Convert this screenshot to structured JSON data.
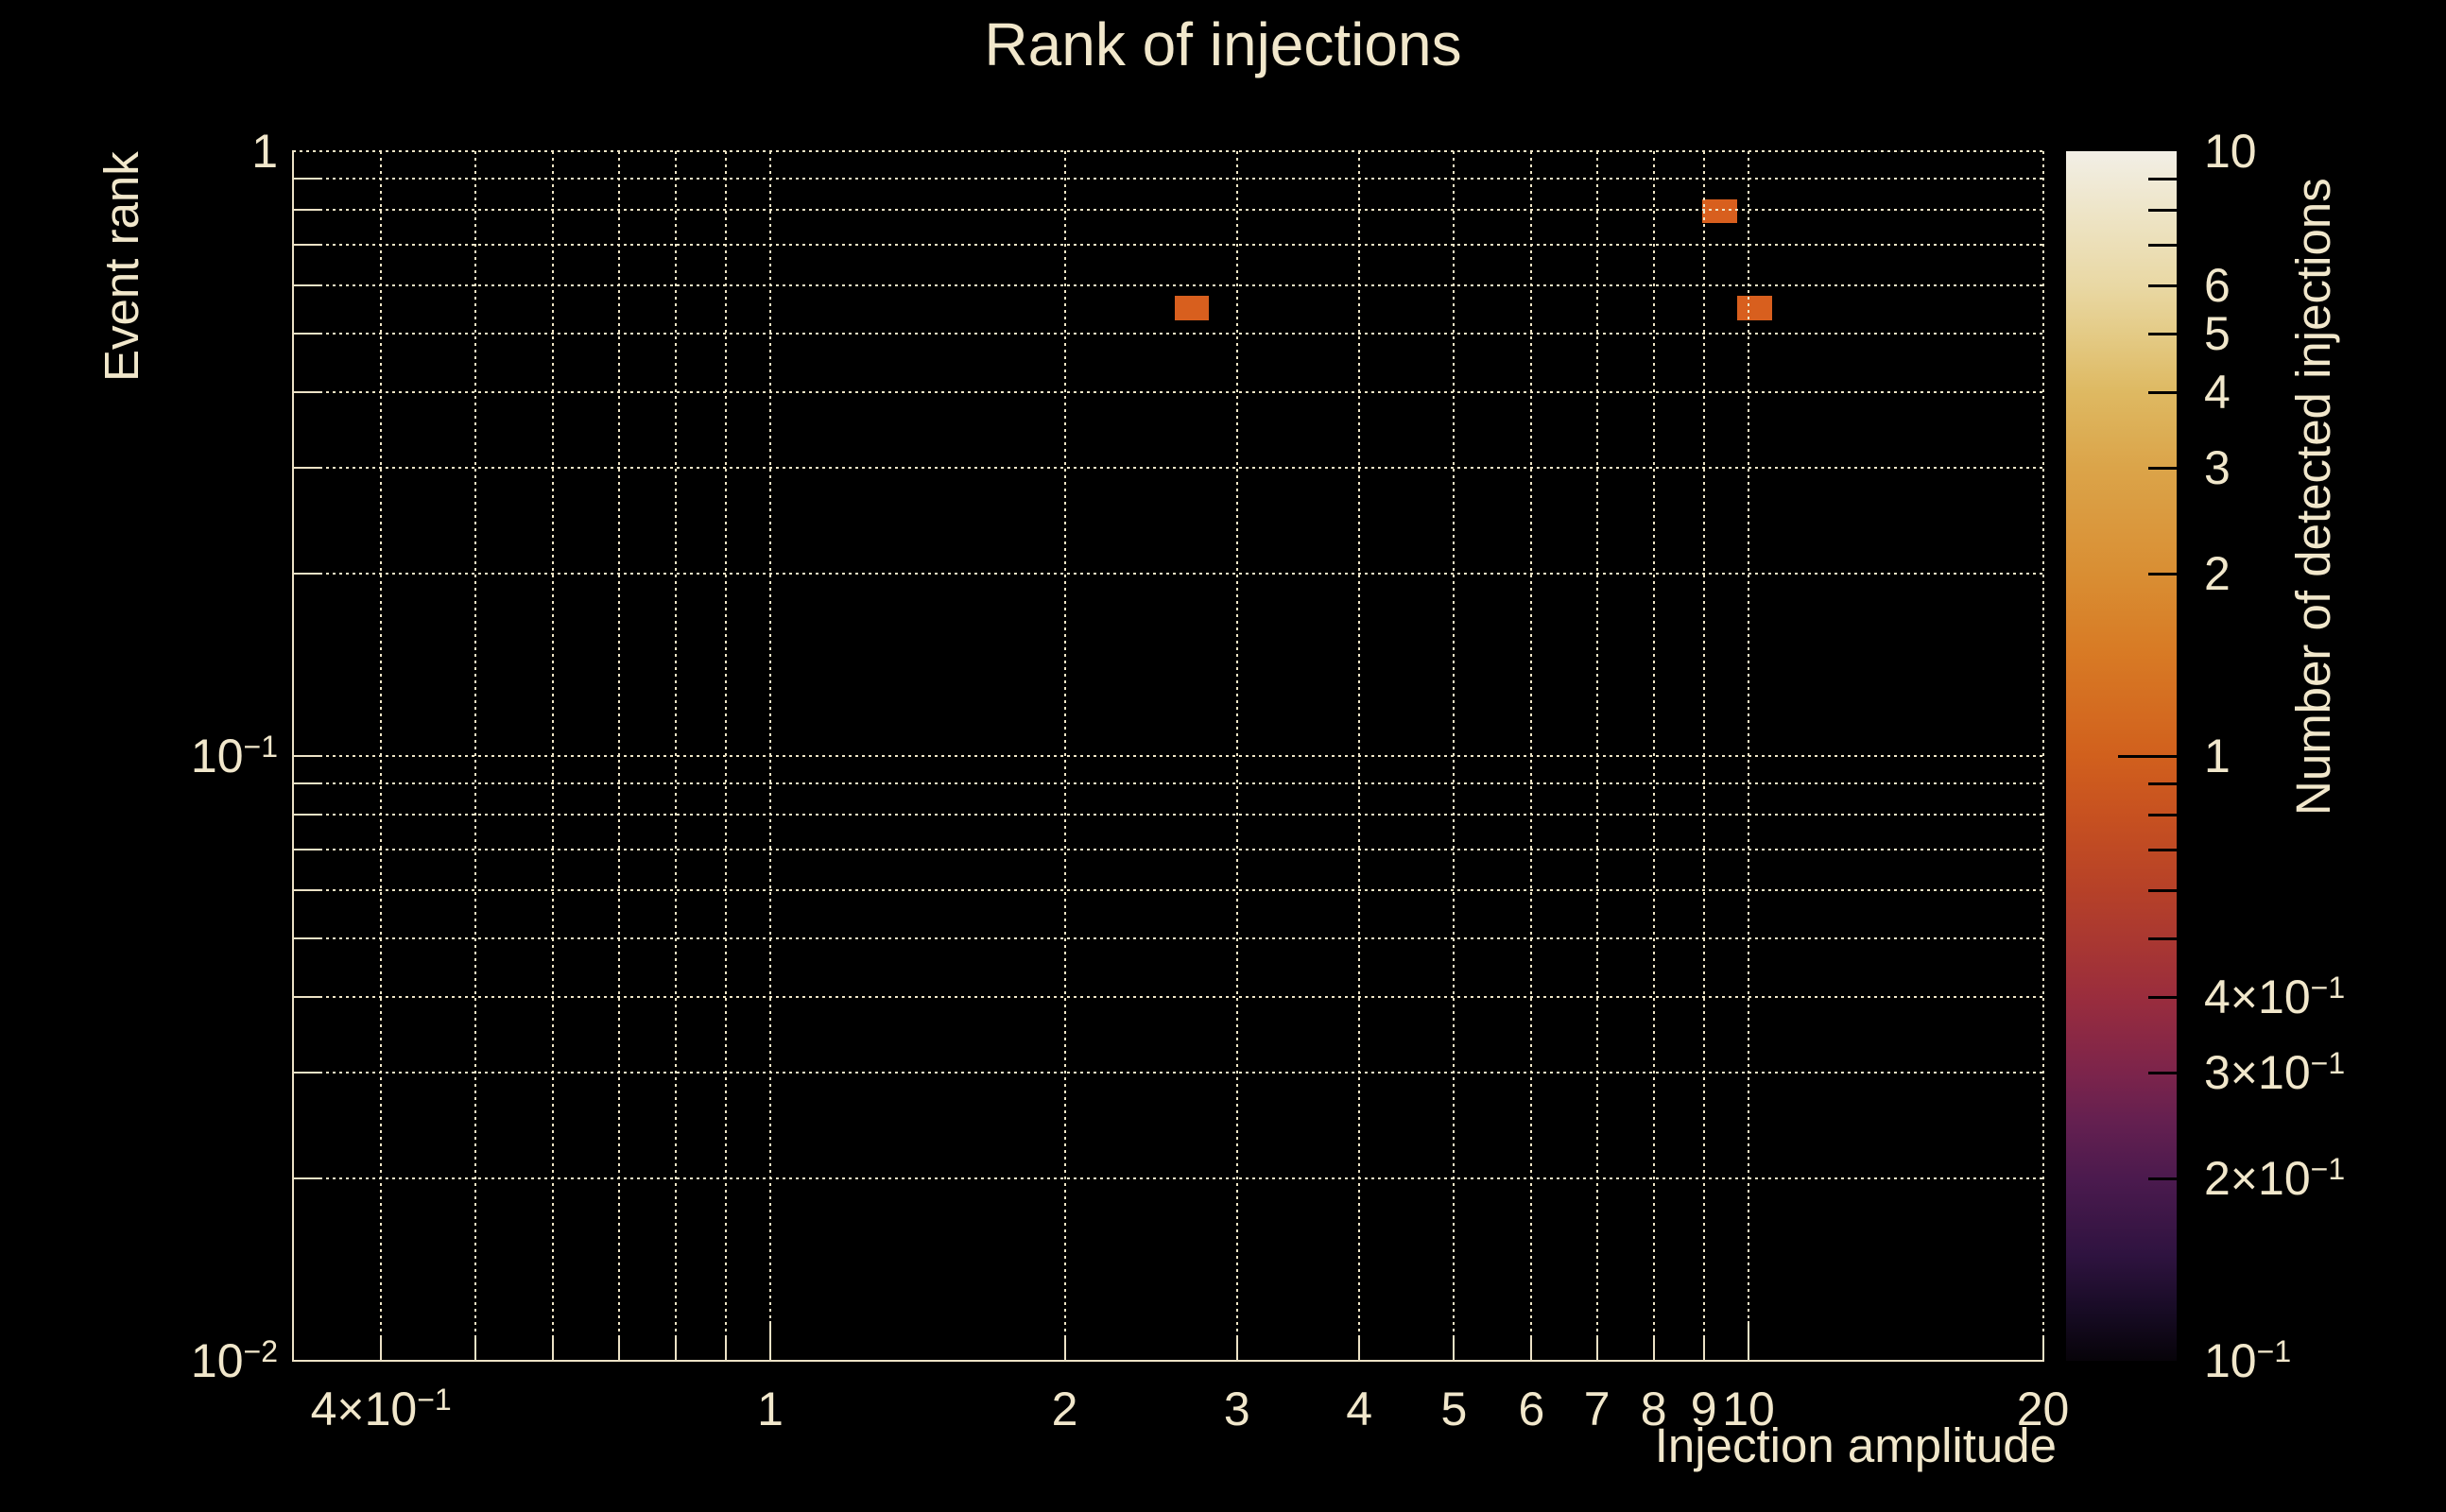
{
  "colors": {
    "background": "#000000",
    "text": "#f1e7cb",
    "grid": "#efe5c6",
    "frame": "#ece2c6",
    "bin": "#d85f1e",
    "colorbar_tick": "#000000"
  },
  "chart_data": {
    "type": "heatmap",
    "title": "Rank of injections",
    "xlabel": "Injection amplitude",
    "ylabel": "Event rank",
    "zlabel": "Number of detected injections",
    "xscale": "log",
    "yscale": "log",
    "zscale": "log",
    "xlim": [
      0.3255,
      20
    ],
    "ylim": [
      0.01,
      1
    ],
    "zlim": [
      0.1,
      10
    ],
    "grid": true,
    "grid_style": "dotted",
    "legend_position": "right-colorbar",
    "x_gridlines": [
      0.4,
      0.5,
      0.6,
      0.7,
      0.8,
      0.9,
      1,
      2,
      3,
      4,
      5,
      6,
      7,
      8,
      9,
      10,
      20
    ],
    "y_gridlines": [
      1,
      0.9,
      0.8,
      0.7,
      0.6,
      0.5,
      0.4,
      0.3,
      0.2,
      0.1,
      0.09,
      0.08,
      0.07,
      0.06,
      0.05,
      0.04,
      0.03,
      0.02
    ],
    "x_tick_labels": [
      {
        "value": 0.4,
        "label": "4×10^−1"
      },
      {
        "value": 1,
        "label": "1"
      },
      {
        "value": 2,
        "label": "2"
      },
      {
        "value": 3,
        "label": "3"
      },
      {
        "value": 4,
        "label": "4"
      },
      {
        "value": 5,
        "label": "5"
      },
      {
        "value": 6,
        "label": "6"
      },
      {
        "value": 7,
        "label": "7"
      },
      {
        "value": 8,
        "label": "8"
      },
      {
        "value": 9,
        "label": "9"
      },
      {
        "value": 10,
        "label": "10"
      },
      {
        "value": 20,
        "label": "20"
      }
    ],
    "x_major_ticks": [
      1,
      10
    ],
    "y_tick_labels": [
      {
        "value": 1,
        "label": "1"
      },
      {
        "value": 0.1,
        "label": "10^−1"
      },
      {
        "value": 0.01,
        "label": "10^−2"
      }
    ],
    "bins": [
      {
        "x_range": [
          8.96,
          9.74
        ],
        "y_range": [
          0.761,
          0.833
        ],
        "count": 1
      },
      {
        "x_range": [
          2.59,
          2.81
        ],
        "y_range": [
          0.525,
          0.577
        ],
        "count": 1
      },
      {
        "x_range": [
          9.74,
          10.57
        ],
        "y_range": [
          0.525,
          0.577
        ],
        "count": 1
      }
    ],
    "colorbar": {
      "ticks": [
        9,
        8,
        7,
        6,
        5,
        4,
        3,
        2,
        1,
        0.9,
        0.8,
        0.7,
        0.6,
        0.5,
        0.4,
        0.3,
        0.2
      ],
      "major_ticks": [
        1
      ],
      "labels": [
        {
          "value": 10,
          "label": "10"
        },
        {
          "value": 6,
          "label": "6"
        },
        {
          "value": 5,
          "label": "5"
        },
        {
          "value": 4,
          "label": "4"
        },
        {
          "value": 3,
          "label": "3"
        },
        {
          "value": 2,
          "label": "2"
        },
        {
          "value": 1,
          "label": "1"
        },
        {
          "value": 0.4,
          "label": "4×10^−1"
        },
        {
          "value": 0.3,
          "label": "3×10^−1"
        },
        {
          "value": 0.2,
          "label": "2×10^−1"
        },
        {
          "value": 0.1,
          "label": "10^−1"
        }
      ],
      "gradient_stops": [
        {
          "pos": 0,
          "color": "#f2efe6"
        },
        {
          "pos": 4.9,
          "color": "#eee5c8"
        },
        {
          "pos": 11.1,
          "color": "#e9d8a4"
        },
        {
          "pos": 15.1,
          "color": "#e4cb86"
        },
        {
          "pos": 19.9,
          "color": "#deb962"
        },
        {
          "pos": 26.2,
          "color": "#dba449"
        },
        {
          "pos": 35.0,
          "color": "#d98e33"
        },
        {
          "pos": 41.2,
          "color": "#d87b25"
        },
        {
          "pos": 50.0,
          "color": "#d1601d"
        },
        {
          "pos": 54.9,
          "color": "#c75120"
        },
        {
          "pos": 61.1,
          "color": "#b64128"
        },
        {
          "pos": 65.1,
          "color": "#aa3831"
        },
        {
          "pos": 69.9,
          "color": "#9a2d3d"
        },
        {
          "pos": 76.2,
          "color": "#7c244b"
        },
        {
          "pos": 80.1,
          "color": "#652050"
        },
        {
          "pos": 85.0,
          "color": "#4b1a4e"
        },
        {
          "pos": 91.2,
          "color": "#2f1340"
        },
        {
          "pos": 96.0,
          "color": "#170b24"
        },
        {
          "pos": 100,
          "color": "#070309"
        }
      ]
    }
  }
}
